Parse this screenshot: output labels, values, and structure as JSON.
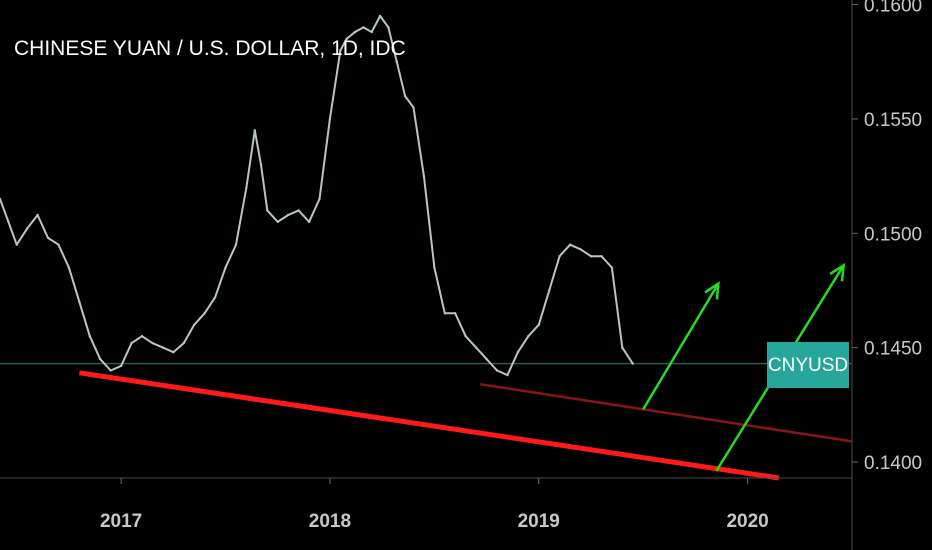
{
  "chart_data": {
    "type": "line",
    "title": "CHINESE YUAN / U.S. DOLLAR, 1D, IDC",
    "symbol": "CNYUSD",
    "last_value": 0.1443,
    "y_ticks": [
      "0.1600",
      "0.1550",
      "0.1500",
      "0.1450",
      "0.1400"
    ],
    "y_tick_values": [
      0.16,
      0.155,
      0.15,
      0.145,
      0.14
    ],
    "ylim": [
      0.1393,
      0.1602
    ],
    "x_ticks": [
      "2017",
      "2018",
      "2019",
      "2020"
    ],
    "x_tick_values": [
      2017.0,
      2018.0,
      2019.0,
      2020.0
    ],
    "xlim": [
      2016.42,
      2020.5
    ],
    "grid": false,
    "series": [
      {
        "x": [
          2016.42,
          2016.46,
          2016.5,
          2016.55,
          2016.6,
          2016.65,
          2016.7,
          2016.75,
          2016.8,
          2016.85,
          2016.9,
          2016.95,
          2017.0,
          2017.05,
          2017.1,
          2017.15,
          2017.2,
          2017.25,
          2017.3,
          2017.35,
          2017.4,
          2017.45,
          2017.5,
          2017.55,
          2017.6,
          2017.64,
          2017.67,
          2017.7,
          2017.75,
          2017.8,
          2017.85,
          2017.9,
          2017.95,
          2018.0,
          2018.05,
          2018.08,
          2018.12,
          2018.16,
          2018.2,
          2018.24,
          2018.28,
          2018.32,
          2018.36,
          2018.4,
          2018.45,
          2018.5,
          2018.55,
          2018.6,
          2018.65,
          2018.7,
          2018.75,
          2018.8,
          2018.85,
          2018.9,
          2018.95,
          2019.0,
          2019.05,
          2019.1,
          2019.15,
          2019.2,
          2019.25,
          2019.3,
          2019.35,
          2019.4,
          2019.45
        ],
        "values": [
          0.1515,
          0.1505,
          0.1495,
          0.1502,
          0.1508,
          0.1498,
          0.1495,
          0.1485,
          0.147,
          0.1455,
          0.1445,
          0.144,
          0.1442,
          0.1452,
          0.1455,
          0.1452,
          0.145,
          0.1448,
          0.1452,
          0.146,
          0.1465,
          0.1472,
          0.1485,
          0.1495,
          0.152,
          0.1545,
          0.153,
          0.151,
          0.1505,
          0.1508,
          0.151,
          0.1505,
          0.1515,
          0.155,
          0.158,
          0.1585,
          0.1588,
          0.159,
          0.1588,
          0.1595,
          0.159,
          0.1575,
          0.156,
          0.1555,
          0.1525,
          0.1485,
          0.1465,
          0.1465,
          0.1455,
          0.145,
          0.1445,
          0.144,
          0.1438,
          0.1448,
          0.1455,
          0.146,
          0.1475,
          0.149,
          0.1495,
          0.1493,
          0.149,
          0.149,
          0.1485,
          0.145,
          0.1443
        ]
      }
    ],
    "trendlines": [
      {
        "name": "support-thick",
        "x": [
          2016.8,
          2020.15
        ],
        "values": [
          0.1439,
          0.1393
        ]
      },
      {
        "name": "support-thin",
        "x": [
          2018.72,
          2020.5
        ],
        "values": [
          0.1434,
          0.1409
        ]
      }
    ],
    "arrows": [
      {
        "x": [
          2019.5,
          2019.86
        ],
        "values": [
          0.1423,
          0.1478
        ]
      },
      {
        "x": [
          2019.85,
          2020.46
        ],
        "values": [
          0.1396,
          0.1486
        ]
      }
    ],
    "colors": {
      "background": "#000000",
      "line": "#b9c7c0",
      "support_thick": "#ff1a1a",
      "support_thin": "#8b1414",
      "arrow": "#22dd22",
      "price_line": "#2c5a57",
      "badge": "#26a69a",
      "axis": "#4a4a4a"
    }
  }
}
